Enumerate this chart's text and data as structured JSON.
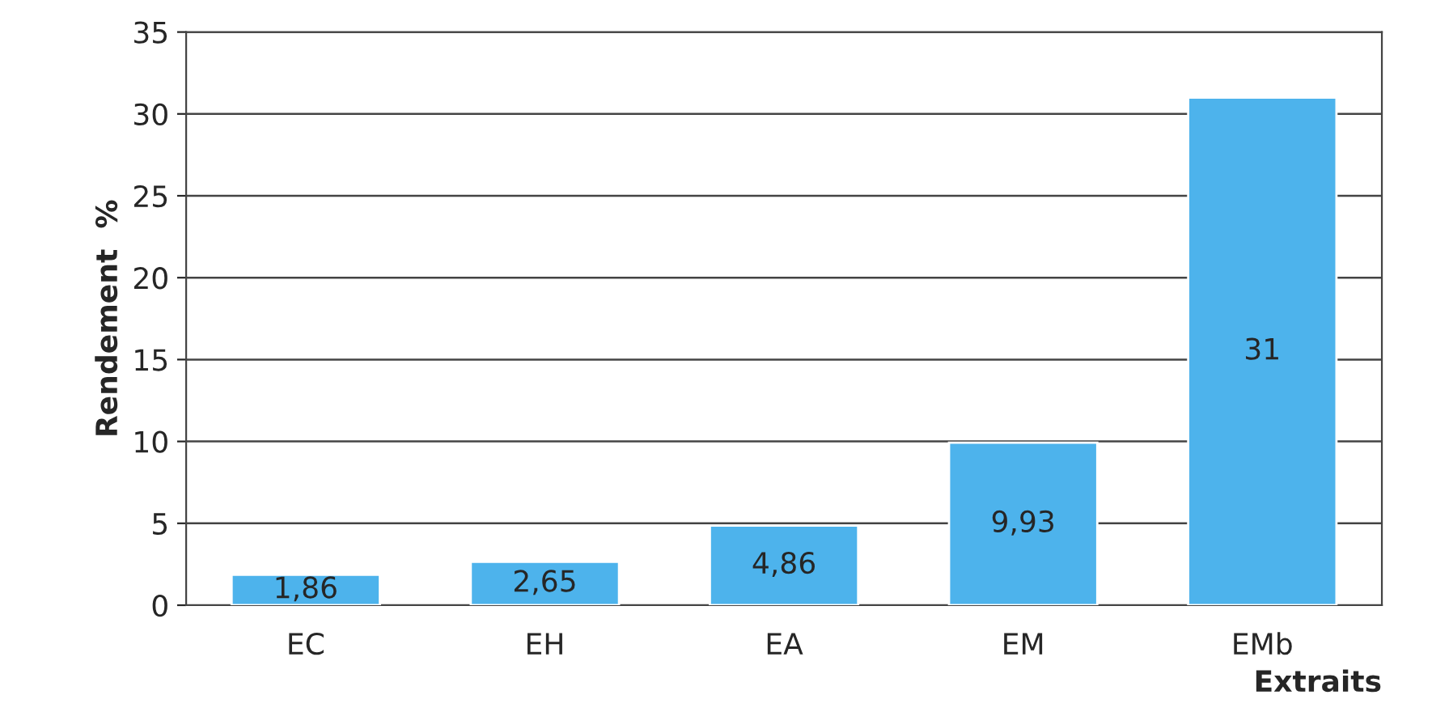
{
  "chart_data": {
    "type": "bar",
    "xlabel": "Extraits",
    "ylabel": "Rendement  %",
    "categories": [
      "EC",
      "EH",
      "EA",
      "EM",
      "EMb"
    ],
    "values": [
      1.86,
      2.65,
      4.86,
      9.93,
      31
    ],
    "value_labels": [
      "1,86",
      "2,65",
      "4,86",
      "9,93",
      "31"
    ],
    "color": "#4db3ec",
    "ylim": [
      0,
      35
    ],
    "yticks": [
      0,
      5,
      10,
      15,
      20,
      25,
      30,
      35
    ],
    "grid": "y",
    "legend": false
  }
}
